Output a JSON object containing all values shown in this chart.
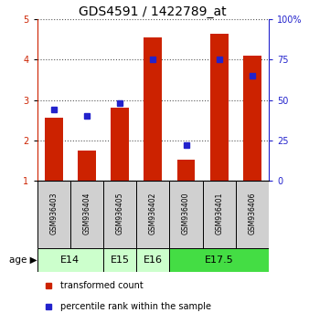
{
  "title": "GDS4591 / 1422789_at",
  "samples": [
    "GSM936403",
    "GSM936404",
    "GSM936405",
    "GSM936402",
    "GSM936400",
    "GSM936401",
    "GSM936406"
  ],
  "transformed_count": [
    2.55,
    1.75,
    2.8,
    4.55,
    1.52,
    4.65,
    4.1
  ],
  "percentile_rank": [
    44,
    40,
    48,
    75,
    22,
    75,
    65
  ],
  "ylim_left": [
    1,
    5
  ],
  "ylim_right": [
    0,
    100
  ],
  "yticks_left": [
    1,
    2,
    3,
    4,
    5
  ],
  "yticks_right": [
    0,
    25,
    50,
    75,
    100
  ],
  "bar_color": "#cc2200",
  "dot_color": "#2222cc",
  "bar_bottom": 1.0,
  "age_groups": [
    {
      "label": "E14",
      "cols": [
        0,
        1
      ],
      "color": "#ccffcc"
    },
    {
      "label": "E15",
      "cols": [
        2
      ],
      "color": "#ccffcc"
    },
    {
      "label": "E16",
      "cols": [
        3
      ],
      "color": "#ccffcc"
    },
    {
      "label": "E17.5",
      "cols": [
        4,
        5,
        6
      ],
      "color": "#44dd44"
    }
  ],
  "legend_items": [
    {
      "label": "transformed count",
      "color": "#cc2200"
    },
    {
      "label": "percentile rank within the sample",
      "color": "#2222cc"
    }
  ],
  "grid_color": "#555555",
  "bg_color": "#ffffff",
  "bar_width": 0.55,
  "title_fontsize": 10,
  "tick_fontsize": 7,
  "sample_fontsize": 5.5,
  "legend_fontsize": 7,
  "age_fontsize": 8
}
